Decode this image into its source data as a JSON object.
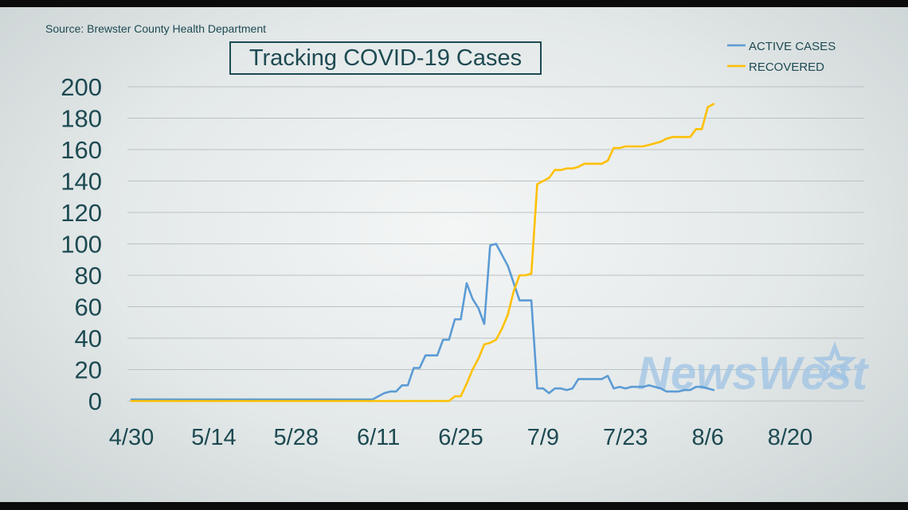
{
  "source_text": "Source: Brewster County Health Department",
  "watermark": "NewsWest",
  "colors": {
    "active": "#5b9bd5",
    "recovered": "#ffc000",
    "text": "#1d4a52",
    "grid": "#b9c2c4"
  },
  "chart_data": {
    "type": "line",
    "title": "Tracking COVID-19 Cases",
    "xlabel": "",
    "ylabel": "",
    "x_tick_labels": [
      "4/30",
      "5/14",
      "5/28",
      "6/11",
      "6/25",
      "7/9",
      "7/23",
      "8/6",
      "8/20"
    ],
    "y_ticks": [
      0,
      20,
      40,
      60,
      80,
      100,
      120,
      140,
      160,
      180,
      200
    ],
    "ylim": [
      0,
      200
    ],
    "x_range": [
      "4/30",
      "9/2"
    ],
    "grid": true,
    "legend_position": "top-right",
    "series": [
      {
        "name": "ACTIVE CASES",
        "points": [
          [
            "4/30",
            1
          ],
          [
            "6/10",
            1
          ],
          [
            "6/12",
            5
          ],
          [
            "6/13",
            6
          ],
          [
            "6/14",
            6
          ],
          [
            "6/15",
            10
          ],
          [
            "6/16",
            10
          ],
          [
            "6/17",
            21
          ],
          [
            "6/18",
            21
          ],
          [
            "6/19",
            29
          ],
          [
            "6/20",
            29
          ],
          [
            "6/21",
            29
          ],
          [
            "6/22",
            39
          ],
          [
            "6/23",
            39
          ],
          [
            "6/24",
            52
          ],
          [
            "6/25",
            52
          ],
          [
            "6/26",
            75
          ],
          [
            "6/27",
            65
          ],
          [
            "6/28",
            59
          ],
          [
            "6/29",
            49
          ],
          [
            "6/30",
            99
          ],
          [
            "7/1",
            100
          ],
          [
            "7/2",
            93
          ],
          [
            "7/3",
            86
          ],
          [
            "7/4",
            75
          ],
          [
            "7/5",
            64
          ],
          [
            "7/6",
            64
          ],
          [
            "7/7",
            64
          ],
          [
            "7/8",
            8
          ],
          [
            "7/9",
            8
          ],
          [
            "7/10",
            5
          ],
          [
            "7/11",
            8
          ],
          [
            "7/12",
            8
          ],
          [
            "7/13",
            7
          ],
          [
            "7/14",
            8
          ],
          [
            "7/15",
            14
          ],
          [
            "7/16",
            14
          ],
          [
            "7/17",
            14
          ],
          [
            "7/18",
            14
          ],
          [
            "7/19",
            14
          ],
          [
            "7/20",
            16
          ],
          [
            "7/21",
            8
          ],
          [
            "7/22",
            9
          ],
          [
            "7/23",
            8
          ],
          [
            "7/24",
            9
          ],
          [
            "7/25",
            9
          ],
          [
            "7/26",
            9
          ],
          [
            "7/27",
            10
          ],
          [
            "7/28",
            9
          ],
          [
            "7/29",
            8
          ],
          [
            "7/30",
            6
          ],
          [
            "7/31",
            6
          ],
          [
            "8/1",
            6
          ],
          [
            "8/2",
            7
          ],
          [
            "8/3",
            7
          ],
          [
            "8/4",
            9
          ],
          [
            "8/5",
            9
          ],
          [
            "8/6",
            8
          ],
          [
            "8/7",
            7
          ]
        ]
      },
      {
        "name": "RECOVERED",
        "points": [
          [
            "4/30",
            0
          ],
          [
            "6/23",
            0
          ],
          [
            "6/24",
            3
          ],
          [
            "6/25",
            3
          ],
          [
            "6/26",
            11
          ],
          [
            "6/27",
            20
          ],
          [
            "6/28",
            27
          ],
          [
            "6/29",
            36
          ],
          [
            "6/30",
            37
          ],
          [
            "7/1",
            39
          ],
          [
            "7/2",
            46
          ],
          [
            "7/3",
            55
          ],
          [
            "7/4",
            70
          ],
          [
            "7/5",
            80
          ],
          [
            "7/6",
            80
          ],
          [
            "7/7",
            81
          ],
          [
            "7/8",
            138
          ],
          [
            "7/9",
            140
          ],
          [
            "7/10",
            142
          ],
          [
            "7/11",
            147
          ],
          [
            "7/12",
            147
          ],
          [
            "7/13",
            148
          ],
          [
            "7/14",
            148
          ],
          [
            "7/15",
            149
          ],
          [
            "7/16",
            151
          ],
          [
            "7/17",
            151
          ],
          [
            "7/18",
            151
          ],
          [
            "7/19",
            151
          ],
          [
            "7/20",
            153
          ],
          [
            "7/21",
            161
          ],
          [
            "7/22",
            161
          ],
          [
            "7/23",
            162
          ],
          [
            "7/24",
            162
          ],
          [
            "7/25",
            162
          ],
          [
            "7/26",
            162
          ],
          [
            "7/27",
            163
          ],
          [
            "7/28",
            164
          ],
          [
            "7/29",
            165
          ],
          [
            "7/30",
            167
          ],
          [
            "7/31",
            168
          ],
          [
            "8/1",
            168
          ],
          [
            "8/2",
            168
          ],
          [
            "8/3",
            168
          ],
          [
            "8/4",
            173
          ],
          [
            "8/5",
            173
          ],
          [
            "8/6",
            187
          ],
          [
            "8/7",
            189
          ]
        ]
      }
    ]
  }
}
